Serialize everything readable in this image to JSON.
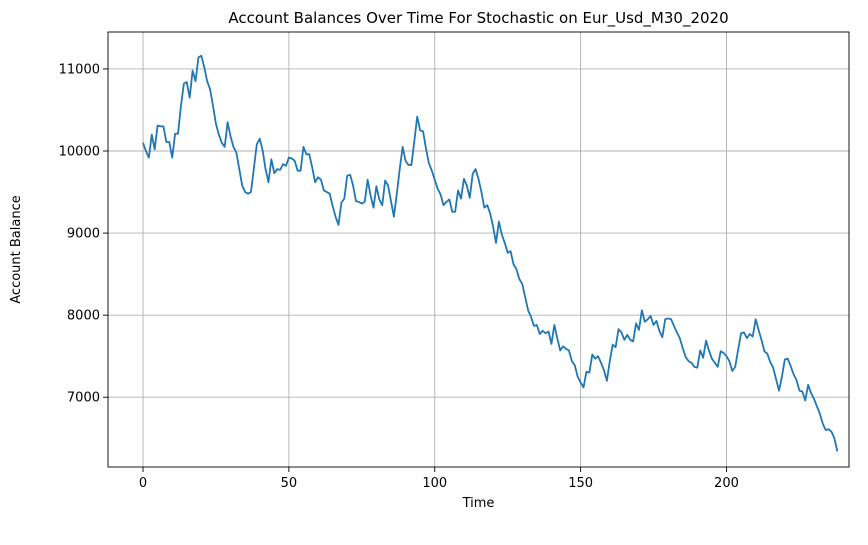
{
  "chart_data": {
    "type": "line",
    "title": "Account Balances Over Time For Stochastic on Eur_Usd_M30_2020",
    "xlabel": "Time",
    "ylabel": "Account Balance",
    "xlim": [
      -12,
      242
    ],
    "ylim": [
      6150,
      11450
    ],
    "grid": true,
    "series_color": "#1f77b4",
    "xticks": [
      0,
      50,
      100,
      150,
      200
    ],
    "yticks": [
      7000,
      8000,
      9000,
      10000,
      11000
    ],
    "series": [
      {
        "values": [
          10100,
          10000,
          9920,
          10200,
          10020,
          10310,
          10300,
          10300,
          10110,
          10110,
          9920,
          10210,
          10210,
          10550,
          10820,
          10840,
          10650,
          10980,
          10850,
          11140,
          11160,
          11020,
          10850,
          10750,
          10550,
          10330,
          10200,
          10100,
          10050,
          10350,
          10180,
          10050,
          9980,
          9780,
          9580,
          9500,
          9480,
          9500,
          9790,
          10080,
          10150,
          10010,
          9780,
          9620,
          9900,
          9730,
          9780,
          9770,
          9840,
          9820,
          9920,
          9910,
          9880,
          9760,
          9760,
          10050,
          9960,
          9960,
          9800,
          9620,
          9680,
          9650,
          9520,
          9500,
          9480,
          9330,
          9200,
          9100,
          9370,
          9420,
          9700,
          9710,
          9580,
          9390,
          9380,
          9360,
          9380,
          9650,
          9460,
          9310,
          9570,
          9410,
          9340,
          9640,
          9580,
          9390,
          9200,
          9480,
          9780,
          10050,
          9880,
          9830,
          9830,
          10120,
          10420,
          10250,
          10240,
          10030,
          9850,
          9760,
          9650,
          9540,
          9470,
          9340,
          9380,
          9410,
          9260,
          9260,
          9520,
          9420,
          9660,
          9580,
          9430,
          9720,
          9780,
          9660,
          9500,
          9310,
          9340,
          9240,
          9080,
          8880,
          9140,
          8980,
          8880,
          8760,
          8780,
          8620,
          8560,
          8440,
          8380,
          8220,
          8060,
          7980,
          7870,
          7880,
          7770,
          7810,
          7780,
          7800,
          7650,
          7880,
          7720,
          7570,
          7620,
          7590,
          7570,
          7440,
          7390,
          7250,
          7180,
          7120,
          7310,
          7300,
          7520,
          7470,
          7500,
          7420,
          7330,
          7200,
          7440,
          7640,
          7610,
          7830,
          7790,
          7700,
          7760,
          7700,
          7680,
          7900,
          7820,
          8060,
          7920,
          7950,
          7990,
          7880,
          7930,
          7810,
          7730,
          7950,
          7960,
          7950,
          7870,
          7790,
          7720,
          7600,
          7490,
          7440,
          7420,
          7370,
          7360,
          7570,
          7480,
          7690,
          7570,
          7470,
          7420,
          7370,
          7560,
          7540,
          7500,
          7440,
          7320,
          7370,
          7580,
          7780,
          7790,
          7720,
          7770,
          7740,
          7950,
          7820,
          7700,
          7560,
          7530,
          7430,
          7360,
          7220,
          7080,
          7250,
          7460,
          7470,
          7380,
          7280,
          7210,
          7080,
          7070,
          6960,
          7150,
          7050,
          6980,
          6890,
          6800,
          6680,
          6600,
          6610,
          6580,
          6500,
          6340
        ]
      }
    ]
  }
}
